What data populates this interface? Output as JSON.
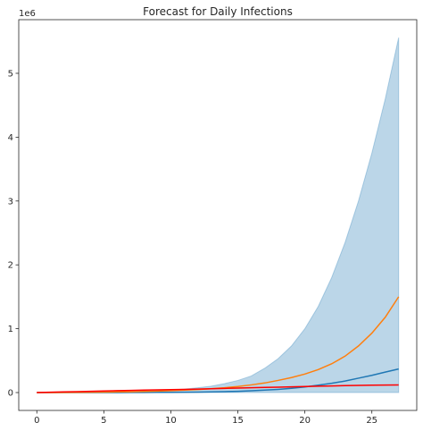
{
  "chart_data": {
    "type": "line",
    "title": "Forecast for Daily Infections",
    "xlabel": "",
    "ylabel": "",
    "y_scale_label": "1e6",
    "xlim": [
      -1.35,
      28.35
    ],
    "ylim": [
      -0.28,
      5.84
    ],
    "x_ticks": [
      0,
      5,
      10,
      15,
      20,
      25
    ],
    "y_ticks": [
      0,
      1,
      2,
      3,
      4,
      5
    ],
    "grid": false,
    "x": [
      0,
      1,
      2,
      3,
      4,
      5,
      6,
      7,
      8,
      9,
      10,
      11,
      12,
      13,
      14,
      15,
      16,
      17,
      18,
      19,
      20,
      21,
      22,
      23,
      24,
      25,
      26,
      27
    ],
    "band": {
      "color": "#1f77b4",
      "opacity": 0.3,
      "lower": [
        0,
        0,
        0,
        0,
        0,
        0,
        0,
        0,
        0,
        0,
        0,
        0,
        0,
        0,
        0,
        0,
        0,
        0,
        0,
        0,
        0,
        0,
        0,
        0,
        0,
        0,
        0,
        0
      ],
      "upper": [
        0,
        0.001,
        0.002,
        0.003,
        0.005,
        0.008,
        0.011,
        0.016,
        0.022,
        0.03,
        0.04,
        0.055,
        0.075,
        0.1,
        0.14,
        0.19,
        0.26,
        0.38,
        0.53,
        0.73,
        1.0,
        1.35,
        1.8,
        2.35,
        3.0,
        3.75,
        4.6,
        5.56
      ]
    },
    "series": [
      {
        "color": "#1f77b4",
        "values": [
          0.0001,
          0.0002,
          0.0003,
          0.0004,
          0.0006,
          0.0008,
          0.001,
          0.0015,
          0.002,
          0.003,
          0.004,
          0.006,
          0.008,
          0.011,
          0.015,
          0.02,
          0.028,
          0.038,
          0.05,
          0.066,
          0.088,
          0.115,
          0.145,
          0.18,
          0.225,
          0.27,
          0.32,
          0.37
        ]
      },
      {
        "color": "#ff7f0e",
        "values": [
          0.0005,
          0.001,
          0.002,
          0.003,
          0.005,
          0.007,
          0.01,
          0.013,
          0.018,
          0.023,
          0.03,
          0.038,
          0.048,
          0.06,
          0.075,
          0.095,
          0.12,
          0.15,
          0.19,
          0.235,
          0.29,
          0.36,
          0.45,
          0.57,
          0.73,
          0.93,
          1.18,
          1.5
        ]
      },
      {
        "color": "#ff0000",
        "values": [
          0,
          0.005,
          0.01,
          0.015,
          0.02,
          0.025,
          0.03,
          0.034,
          0.038,
          0.042,
          0.046,
          0.05,
          0.055,
          0.06,
          0.065,
          0.07,
          0.075,
          0.08,
          0.085,
          0.09,
          0.095,
          0.1,
          0.104,
          0.108,
          0.112,
          0.115,
          0.118,
          0.12
        ]
      }
    ]
  }
}
